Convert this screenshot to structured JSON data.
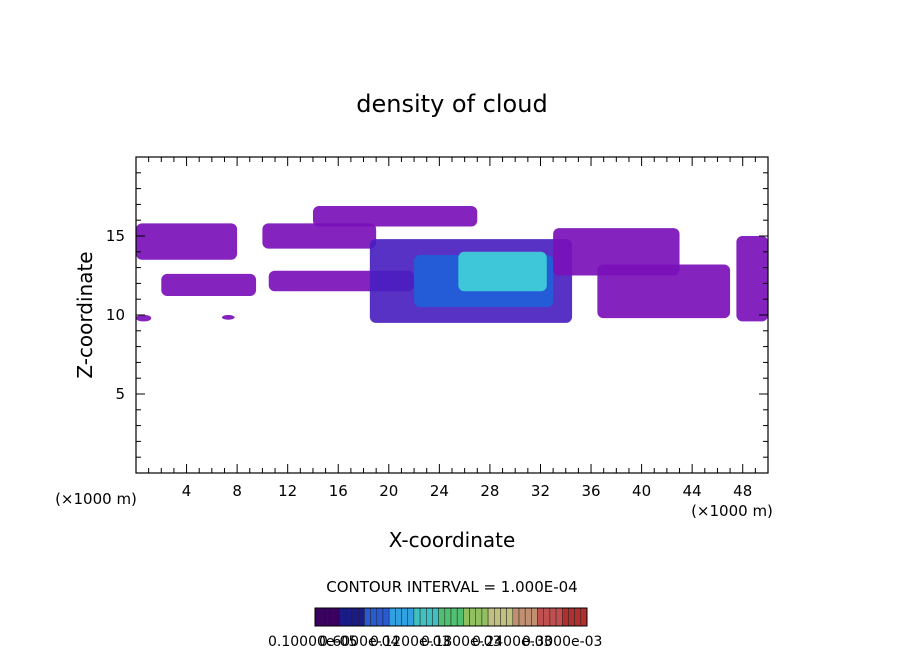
{
  "chart_data": {
    "type": "heatmap",
    "title": "density of cloud",
    "xlabel": "X-coordinate",
    "ylabel": "Z-coordinate",
    "x_unit": "(×1000 m)",
    "x_unit_right": "(×1000 m)",
    "xlim": [
      0,
      50
    ],
    "ylim": [
      0,
      20
    ],
    "x_ticks": [
      4,
      8,
      12,
      16,
      20,
      24,
      28,
      32,
      36,
      40,
      44,
      48
    ],
    "y_ticks": [
      5,
      10,
      15
    ],
    "contour_interval_text": "CONTOUR INTERVAL = 1.000E-04",
    "colorbar_labels_text": "0.10000e-05",
    "colorbar_labels_overlap": [
      "0.6000e-04",
      "0.1200e-03",
      "0.1800e-03",
      "0.2400e-03",
      "0.3000e-03"
    ],
    "colorbar_colors": [
      "#3a0060",
      "#1a1a8a",
      "#2a5ad0",
      "#30a0e0",
      "#40c0c0",
      "#50c070",
      "#90c060",
      "#c0c080",
      "#c09070",
      "#c05050",
      "#b03030"
    ],
    "cloud_regions": [
      {
        "x0": 0.0,
        "x1": 8.0,
        "z0": 13.5,
        "z1": 15.8,
        "level": "low"
      },
      {
        "x0": 2.0,
        "x1": 9.5,
        "z0": 11.2,
        "z1": 12.6,
        "level": "low"
      },
      {
        "x0": 10.0,
        "x1": 19.0,
        "z0": 14.2,
        "z1": 15.8,
        "level": "low"
      },
      {
        "x0": 14.0,
        "x1": 27.0,
        "z0": 15.6,
        "z1": 16.9,
        "level": "low"
      },
      {
        "x0": 10.5,
        "x1": 22.0,
        "z0": 11.5,
        "z1": 12.8,
        "level": "low"
      },
      {
        "x0": 18.5,
        "x1": 34.5,
        "z0": 9.5,
        "z1": 14.8,
        "level": "mid"
      },
      {
        "x0": 22.0,
        "x1": 33.0,
        "z0": 10.5,
        "z1": 13.8,
        "level": "high"
      },
      {
        "x0": 25.5,
        "x1": 32.5,
        "z0": 11.5,
        "z1": 14.0,
        "level": "peak"
      },
      {
        "x0": 33.0,
        "x1": 43.0,
        "z0": 12.5,
        "z1": 15.5,
        "level": "low"
      },
      {
        "x0": 36.5,
        "x1": 47.0,
        "z0": 9.8,
        "z1": 13.2,
        "level": "low"
      },
      {
        "x0": 47.5,
        "x1": 50.0,
        "z0": 9.6,
        "z1": 15.0,
        "level": "low"
      },
      {
        "x0": 0.0,
        "x1": 1.2,
        "z0": 9.6,
        "z1": 10.0,
        "level": "low"
      },
      {
        "x0": 6.8,
        "x1": 7.8,
        "z0": 9.7,
        "z1": 10.0,
        "level": "low"
      }
    ],
    "level_colors": {
      "low": "#7a10b8",
      "mid": "#4a20c0",
      "high": "#2060d8",
      "peak": "#40d0d8"
    },
    "grid": false,
    "legend_placement": "bottom-center"
  }
}
